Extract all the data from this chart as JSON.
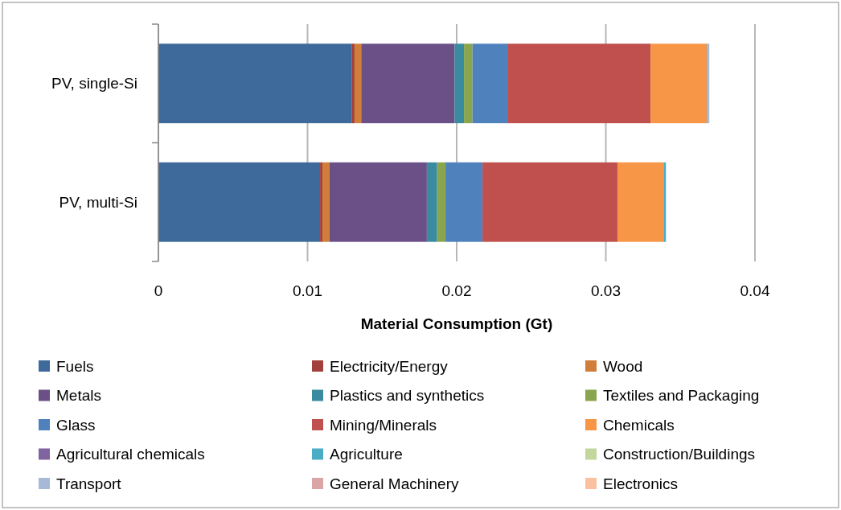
{
  "chart_data": {
    "type": "bar",
    "orientation": "horizontal",
    "stacked": true,
    "xlabel": "Material Consumption (Gt)",
    "categories": [
      "PV, single-Si",
      "PV, multi-Si"
    ],
    "xlim": [
      0,
      0.04
    ],
    "xticks": [
      0,
      0.01,
      0.02,
      0.03,
      0.04
    ],
    "grid": "x",
    "legend": "bottom",
    "series": [
      {
        "name": "Fuels",
        "color": "#3e6a9b",
        "values": [
          0.01295,
          0.01084
        ]
      },
      {
        "name": "Electricity/Energy",
        "color": "#a2403d",
        "values": [
          0.0002,
          0.00016
        ]
      },
      {
        "name": "Wood",
        "color": "#d07e3a",
        "values": [
          0.00045,
          0.00048
        ]
      },
      {
        "name": "Metals",
        "color": "#6b5088",
        "values": [
          0.00626,
          0.00652
        ]
      },
      {
        "name": "Plastics and synthetics",
        "color": "#3a8ba0",
        "values": [
          0.00063,
          0.00069
        ]
      },
      {
        "name": "Textiles and Packaging",
        "color": "#89a54e",
        "values": [
          0.00057,
          0.00056
        ]
      },
      {
        "name": "Glass",
        "color": "#4f81bd",
        "values": [
          0.00234,
          0.00248
        ]
      },
      {
        "name": "Mining/Minerals",
        "color": "#c0504d",
        "values": [
          0.0096,
          0.00905
        ]
      },
      {
        "name": "Chemicals",
        "color": "#f79646",
        "values": [
          0.00378,
          0.00309
        ]
      },
      {
        "name": "Agricultural chemicals",
        "color": "#8064a2",
        "values": [
          0,
          0
        ]
      },
      {
        "name": "Agriculture",
        "color": "#4bacc6",
        "values": [
          6e-05,
          0.00016
        ]
      },
      {
        "name": "Construction/Buildings",
        "color": "#c3d69b",
        "values": [
          0,
          0
        ]
      },
      {
        "name": "Transport",
        "color": "#a7b9d9",
        "values": [
          0.0001,
          0
        ]
      },
      {
        "name": "General Machinery",
        "color": "#dba5a5",
        "values": [
          0,
          0
        ]
      },
      {
        "name": "Electronics",
        "color": "#fac09f",
        "values": [
          0,
          0
        ]
      }
    ]
  }
}
